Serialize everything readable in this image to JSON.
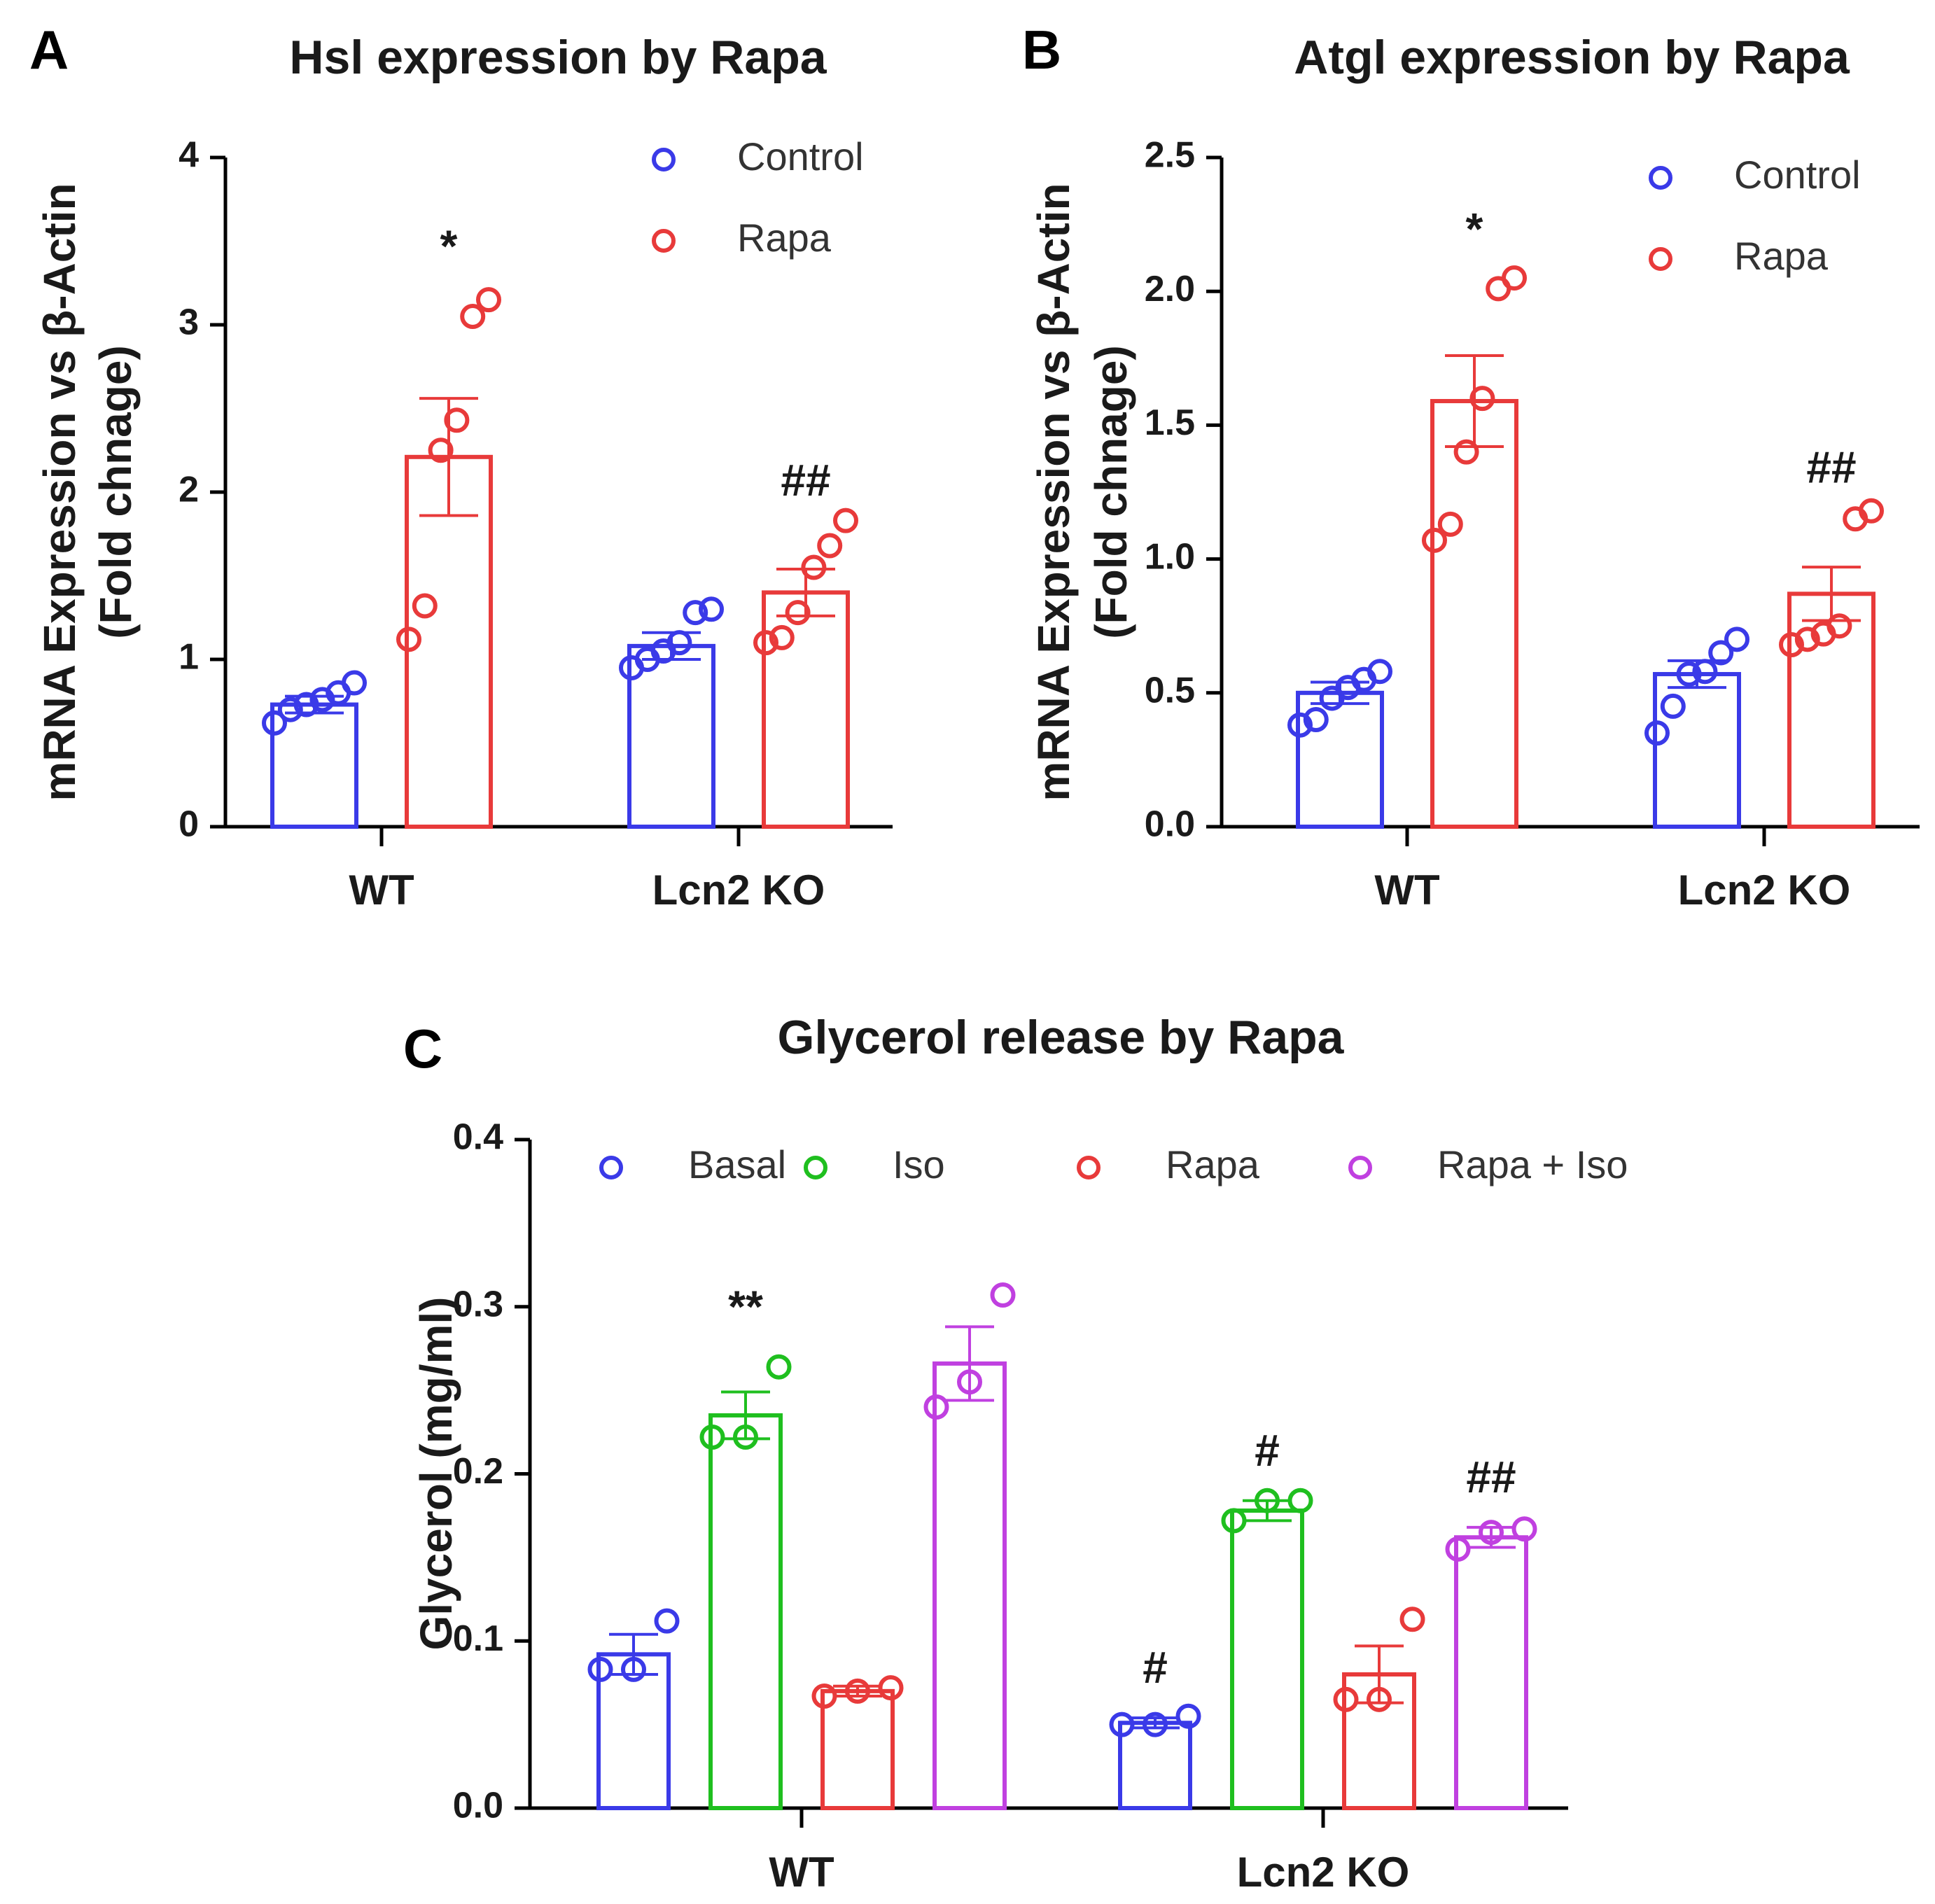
{
  "chart_data": [
    {
      "panel": "A",
      "type": "bar",
      "title": "Hsl expression by Rapa",
      "ylabel_line1": "mRNA Expression vs β-Actin",
      "ylabel_line2": "(Fold chnage)",
      "xlabel": "",
      "ylim": [
        0,
        4
      ],
      "yticks": [
        {
          "v": 0,
          "label": "0"
        },
        {
          "v": 1,
          "label": "1"
        },
        {
          "v": 2,
          "label": "2"
        },
        {
          "v": 3,
          "label": "3"
        },
        {
          "v": 4,
          "label": "4"
        }
      ],
      "categories": [
        "WT",
        "Lcn2 KO"
      ],
      "legend": "top-right",
      "series": [
        {
          "name": "Control",
          "color": "#3a3ae8",
          "values": [
            0.73,
            1.08
          ],
          "errors": [
            0.05,
            0.08
          ],
          "points": [
            [
              0.62,
              0.7,
              0.73,
              0.76,
              0.8,
              0.86
            ],
            [
              0.95,
              1.0,
              1.05,
              1.1,
              1.28,
              1.3
            ]
          ]
        },
        {
          "name": "Rapa",
          "color": "#e83a3a",
          "values": [
            2.21,
            1.4
          ],
          "errors": [
            0.35,
            0.14
          ],
          "points": [
            [
              1.12,
              1.32,
              2.25,
              2.43,
              3.05,
              3.15
            ],
            [
              1.1,
              1.13,
              1.28,
              1.55,
              1.68,
              1.83
            ]
          ]
        }
      ],
      "annotations": [
        {
          "category": 0,
          "series": 1,
          "text": "*",
          "y": 3.45
        },
        {
          "category": 1,
          "series": 1,
          "text": "##",
          "y": 2.05
        }
      ]
    },
    {
      "panel": "B",
      "type": "bar",
      "title": "Atgl expression by Rapa",
      "ylabel_line1": "mRNA Expression vs β-Actin",
      "ylabel_line2": "(Fold chnage)",
      "xlabel": "",
      "ylim": [
        0,
        2.5
      ],
      "yticks": [
        {
          "v": 0,
          "label": "0.0"
        },
        {
          "v": 0.5,
          "label": "0.5"
        },
        {
          "v": 1.0,
          "label": "1.0"
        },
        {
          "v": 1.5,
          "label": "1.5"
        },
        {
          "v": 2.0,
          "label": "2.0"
        },
        {
          "v": 2.5,
          "label": "2.5"
        }
      ],
      "categories": [
        "WT",
        "Lcn2 KO"
      ],
      "legend": "top-right",
      "series": [
        {
          "name": "Control",
          "color": "#3a3ae8",
          "values": [
            0.5,
            0.57
          ],
          "errors": [
            0.04,
            0.05
          ],
          "points": [
            [
              0.38,
              0.4,
              0.48,
              0.52,
              0.55,
              0.58
            ],
            [
              0.35,
              0.45,
              0.57,
              0.58,
              0.65,
              0.7
            ]
          ]
        },
        {
          "name": "Rapa",
          "color": "#e83a3a",
          "values": [
            1.59,
            0.87
          ],
          "errors": [
            0.17,
            0.1
          ],
          "points": [
            [
              1.07,
              1.13,
              1.4,
              1.6,
              2.01,
              2.05
            ],
            [
              0.68,
              0.7,
              0.72,
              0.75,
              1.15,
              1.18
            ]
          ]
        }
      ],
      "annotations": [
        {
          "category": 0,
          "series": 1,
          "text": "*",
          "y": 2.22
        },
        {
          "category": 1,
          "series": 1,
          "text": "##",
          "y": 1.33
        }
      ]
    },
    {
      "panel": "C",
      "type": "bar",
      "title": "Glycerol release by Rapa",
      "ylabel_line1": "Glycerol (mg/ml)",
      "ylabel_line2": "",
      "xlabel": "",
      "ylim": [
        0,
        0.4
      ],
      "yticks": [
        {
          "v": 0,
          "label": "0.0"
        },
        {
          "v": 0.1,
          "label": "0.1"
        },
        {
          "v": 0.2,
          "label": "0.2"
        },
        {
          "v": 0.3,
          "label": "0.3"
        },
        {
          "v": 0.4,
          "label": "0.4"
        }
      ],
      "categories": [
        "WT",
        "Lcn2 KO"
      ],
      "legend": "top",
      "series": [
        {
          "name": "Basal",
          "color": "#3a3ae8",
          "values": [
            0.092,
            0.051
          ],
          "errors": [
            0.012,
            0.003
          ],
          "points": [
            [
              0.083,
              0.083,
              0.112
            ],
            [
              0.05,
              0.05,
              0.055
            ]
          ]
        },
        {
          "name": "Iso",
          "color": "#1fbf1f",
          "values": [
            0.235,
            0.178
          ],
          "errors": [
            0.014,
            0.006
          ],
          "points": [
            [
              0.222,
              0.222,
              0.264
            ],
            [
              0.172,
              0.184,
              0.184
            ]
          ]
        },
        {
          "name": "Rapa",
          "color": "#e83a3a",
          "values": [
            0.07,
            0.08
          ],
          "errors": [
            0.003,
            0.017
          ],
          "points": [
            [
              0.067,
              0.07,
              0.072
            ],
            [
              0.065,
              0.065,
              0.113
            ]
          ]
        },
        {
          "name": "Rapa + Iso",
          "color": "#c040e0",
          "values": [
            0.266,
            0.162
          ],
          "errors": [
            0.022,
            0.006
          ],
          "points": [
            [
              0.24,
              0.255,
              0.307
            ],
            [
              0.155,
              0.165,
              0.167
            ]
          ]
        }
      ],
      "annotations": [
        {
          "category": 0,
          "series": 1,
          "text": "**",
          "y": 0.298
        },
        {
          "category": 1,
          "series": 0,
          "text": "#",
          "y": 0.082
        },
        {
          "category": 1,
          "series": 1,
          "text": "#",
          "y": 0.212
        },
        {
          "category": 1,
          "series": 3,
          "text": "##",
          "y": 0.196
        }
      ]
    }
  ]
}
